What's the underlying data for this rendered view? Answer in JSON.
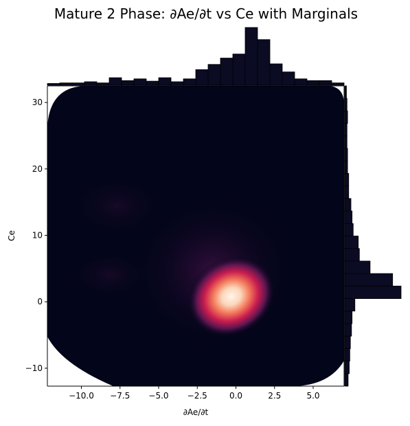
{
  "chart_data": {
    "type": "heatmap",
    "subtype": "kde-joint-plot-with-marginal-histograms",
    "title": "Mature 2 Phase: ∂Ae/∂t vs Ce with Marginals",
    "xlabel": "∂Ae/∂t",
    "ylabel": "Ce",
    "xlim": [
      -12.2,
      7.0
    ],
    "ylim": [
      -12.7,
      32.5
    ],
    "xticks": [
      -10.0,
      -7.5,
      -5.0,
      -2.5,
      0.0,
      2.5,
      5.0
    ],
    "xtick_labels": [
      "−10.0",
      "−7.5",
      "−5.0",
      "−2.5",
      "0.0",
      "2.5",
      "5.0"
    ],
    "yticks": [
      -10,
      0,
      10,
      20,
      30
    ],
    "ytick_labels": [
      "−10",
      "0",
      "10",
      "20",
      "30"
    ],
    "grid": false,
    "colormap": "rocket",
    "colors": {
      "background": "#03051a",
      "hist_fill": "#0b0b24",
      "hist_edge": "#000000",
      "density_low": "#03051a",
      "density_mid": "#a11a5b",
      "density_high": "#faebdd"
    },
    "density_peak": {
      "x": -0.3,
      "y": 0.8
    },
    "marginal_x": {
      "bin_edges": [
        -12.2,
        -11.4,
        -10.6,
        -9.8,
        -9.0,
        -8.2,
        -7.4,
        -6.6,
        -5.8,
        -5.0,
        -4.2,
        -3.4,
        -2.6,
        -1.8,
        -1.0,
        -0.2,
        0.6,
        1.4,
        2.2,
        3.0,
        3.8,
        4.6,
        5.4,
        6.2,
        7.0
      ],
      "counts": [
        3,
        4,
        4,
        6,
        4,
        13,
        8,
        11,
        7,
        13,
        6,
        11,
        27,
        36,
        47,
        54,
        100,
        79,
        37,
        23,
        11,
        8,
        8,
        4
      ]
    },
    "marginal_y": {
      "bin_edges": [
        -12.7,
        -10.82,
        -8.93,
        -7.05,
        -5.17,
        -3.28,
        -1.4,
        0.48,
        2.37,
        4.25,
        6.13,
        8.02,
        9.9,
        11.78,
        13.67,
        15.55,
        17.43,
        19.32,
        21.2,
        23.08,
        24.97,
        26.85,
        28.73,
        30.62,
        32.5
      ],
      "counts": [
        6,
        8,
        9,
        10,
        12,
        13,
        18,
        100,
        85,
        45,
        26,
        24,
        15,
        13,
        11,
        7,
        7,
        5,
        5,
        4,
        4,
        5,
        4,
        3
      ]
    }
  }
}
